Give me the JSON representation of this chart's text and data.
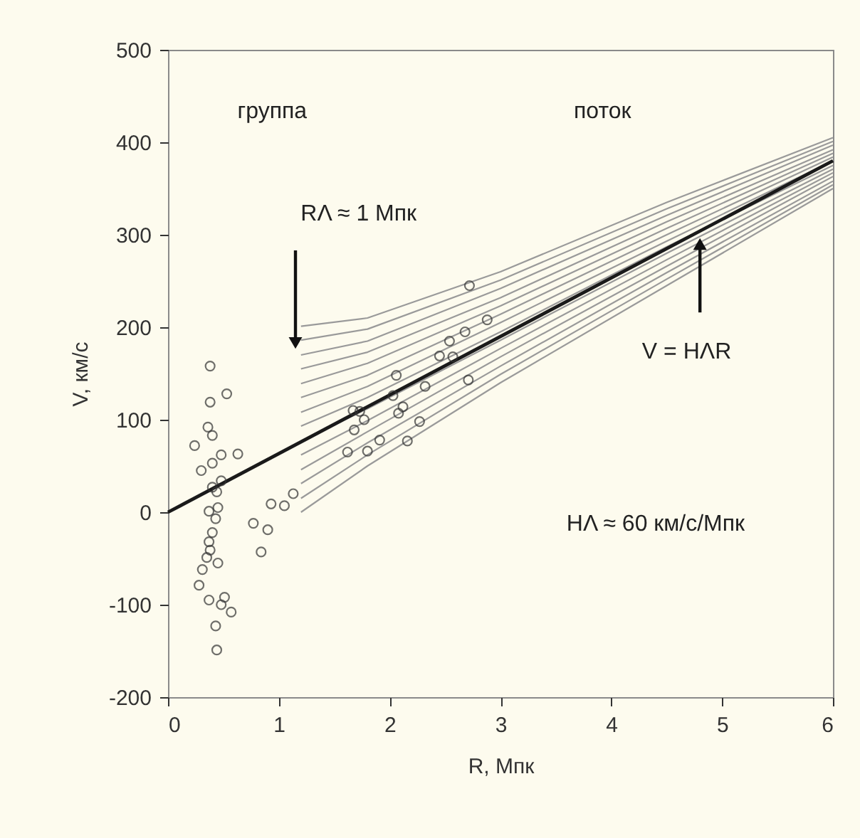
{
  "chart_data": {
    "type": "scatter",
    "xlabel": "R, Мпк",
    "ylabel": "V, км/с",
    "xlim": [
      0,
      6
    ],
    "xticks": [
      0,
      1,
      2,
      3,
      4,
      5,
      6
    ],
    "ylim": [
      -200,
      500
    ],
    "yticks": [
      -200,
      -100,
      0,
      100,
      200,
      300,
      400,
      500
    ],
    "grid": false,
    "annotations": [
      "группа",
      "поток",
      "RΛ ≈ 1 Мпк",
      {
        "text": "V = HΛR",
        "x": 4.8,
        "y": 290
      },
      "HΛ ≈ 60 км/с/Мпк"
    ],
    "series": [
      {
        "type": "line",
        "color": "#9a9a9a",
        "x": [
          1.2,
          1.8,
          3,
          4.5,
          6
        ],
        "values": [
          201,
          210,
          260,
          335,
          405
        ]
      },
      {
        "type": "line",
        "color": "#9a9a9a",
        "x": [
          1.2,
          1.8,
          3,
          4.5,
          6
        ],
        "values": [
          186,
          198,
          251,
          328,
          401
        ]
      },
      {
        "type": "line",
        "color": "#9a9a9a",
        "x": [
          1.2,
          1.8,
          3,
          4.5,
          6
        ],
        "values": [
          170,
          185,
          242,
          321,
          397
        ]
      },
      {
        "type": "line",
        "color": "#9a9a9a",
        "x": [
          1.2,
          1.8,
          3,
          4.5,
          6
        ],
        "values": [
          155,
          173,
          232,
          314,
          392
        ]
      },
      {
        "type": "line",
        "color": "#9a9a9a",
        "x": [
          1.2,
          1.8,
          3,
          4.5,
          6
        ],
        "values": [
          139,
          161,
          223,
          307,
          388
        ]
      },
      {
        "type": "line",
        "color": "#9a9a9a",
        "x": [
          1.2,
          1.8,
          3,
          4.5,
          6
        ],
        "values": [
          124,
          148,
          214,
          300,
          384
        ]
      },
      {
        "type": "line",
        "color": "#9a9a9a",
        "x": [
          1.2,
          1.8,
          3,
          4.5,
          6
        ],
        "values": [
          108,
          136,
          205,
          293,
          380
        ]
      },
      {
        "type": "line",
        "color": "#9a9a9a",
        "x": [
          1.2,
          1.8,
          3,
          4.5,
          6
        ],
        "values": [
          93,
          124,
          195,
          287,
          375
        ]
      },
      {
        "type": "line",
        "color": "#9a9a9a",
        "x": [
          1.2,
          1.8,
          3,
          4.5,
          6
        ],
        "values": [
          77,
          112,
          186,
          280,
          371
        ]
      },
      {
        "type": "line",
        "color": "#9a9a9a",
        "x": [
          1.2,
          1.8,
          3,
          4.5,
          6
        ],
        "values": [
          62,
          99,
          177,
          273,
          367
        ]
      },
      {
        "type": "line",
        "color": "#9a9a9a",
        "x": [
          1.2,
          1.8,
          3,
          4.5,
          6
        ],
        "values": [
          46,
          87,
          168,
          266,
          363
        ]
      },
      {
        "type": "line",
        "color": "#9a9a9a",
        "x": [
          1.2,
          1.8,
          3,
          4.5,
          6
        ],
        "values": [
          31,
          75,
          158,
          259,
          358
        ]
      },
      {
        "type": "line",
        "color": "#9a9a9a",
        "x": [
          1.2,
          1.8,
          3,
          4.5,
          6
        ],
        "values": [
          15,
          62,
          149,
          252,
          354
        ]
      },
      {
        "type": "line",
        "color": "#9a9a9a",
        "x": [
          1.2,
          1.8,
          3,
          4.5,
          6
        ],
        "values": [
          0,
          50,
          140,
          245,
          350
        ]
      },
      {
        "type": "line",
        "color": "#1a1a1a",
        "x": [
          0,
          6
        ],
        "values": [
          0,
          380
        ]
      },
      {
        "color": "#333333",
        "marker": "circle",
        "x": [
          0.38,
          0.53,
          0.38,
          0.36,
          0.4,
          0.24,
          0.48,
          0.63,
          0.4,
          0.3,
          0.48,
          0.4,
          0.44,
          0.45,
          0.37,
          0.43,
          0.93,
          1.05,
          1.13,
          0.77,
          0.9,
          0.84,
          0.4,
          0.37,
          0.38,
          0.35,
          0.45,
          0.31,
          0.28,
          0.37,
          0.51,
          0.48,
          0.57,
          0.43,
          0.44,
          2.72,
          2.88,
          2.68,
          2.54,
          2.45,
          2.57,
          2.71,
          2.06,
          2.32,
          2.03,
          1.67,
          1.73,
          1.77,
          2.12,
          2.08,
          1.68,
          2.27,
          1.62,
          1.8,
          1.91,
          2.16
        ],
        "values": [
          158,
          128,
          119,
          92,
          83,
          72,
          62,
          63,
          53,
          45,
          34,
          27,
          22,
          5,
          1,
          -7,
          9,
          7,
          20,
          -12,
          -19,
          -43,
          -22,
          -32,
          -41,
          -49,
          -55,
          -62,
          -79,
          -95,
          -92,
          -100,
          -108,
          -123,
          -149,
          245,
          208,
          195,
          185,
          169,
          168,
          143,
          148,
          136,
          126,
          110,
          109,
          100,
          114,
          107,
          89,
          98,
          65,
          66,
          78,
          77
        ]
      }
    ]
  }
}
